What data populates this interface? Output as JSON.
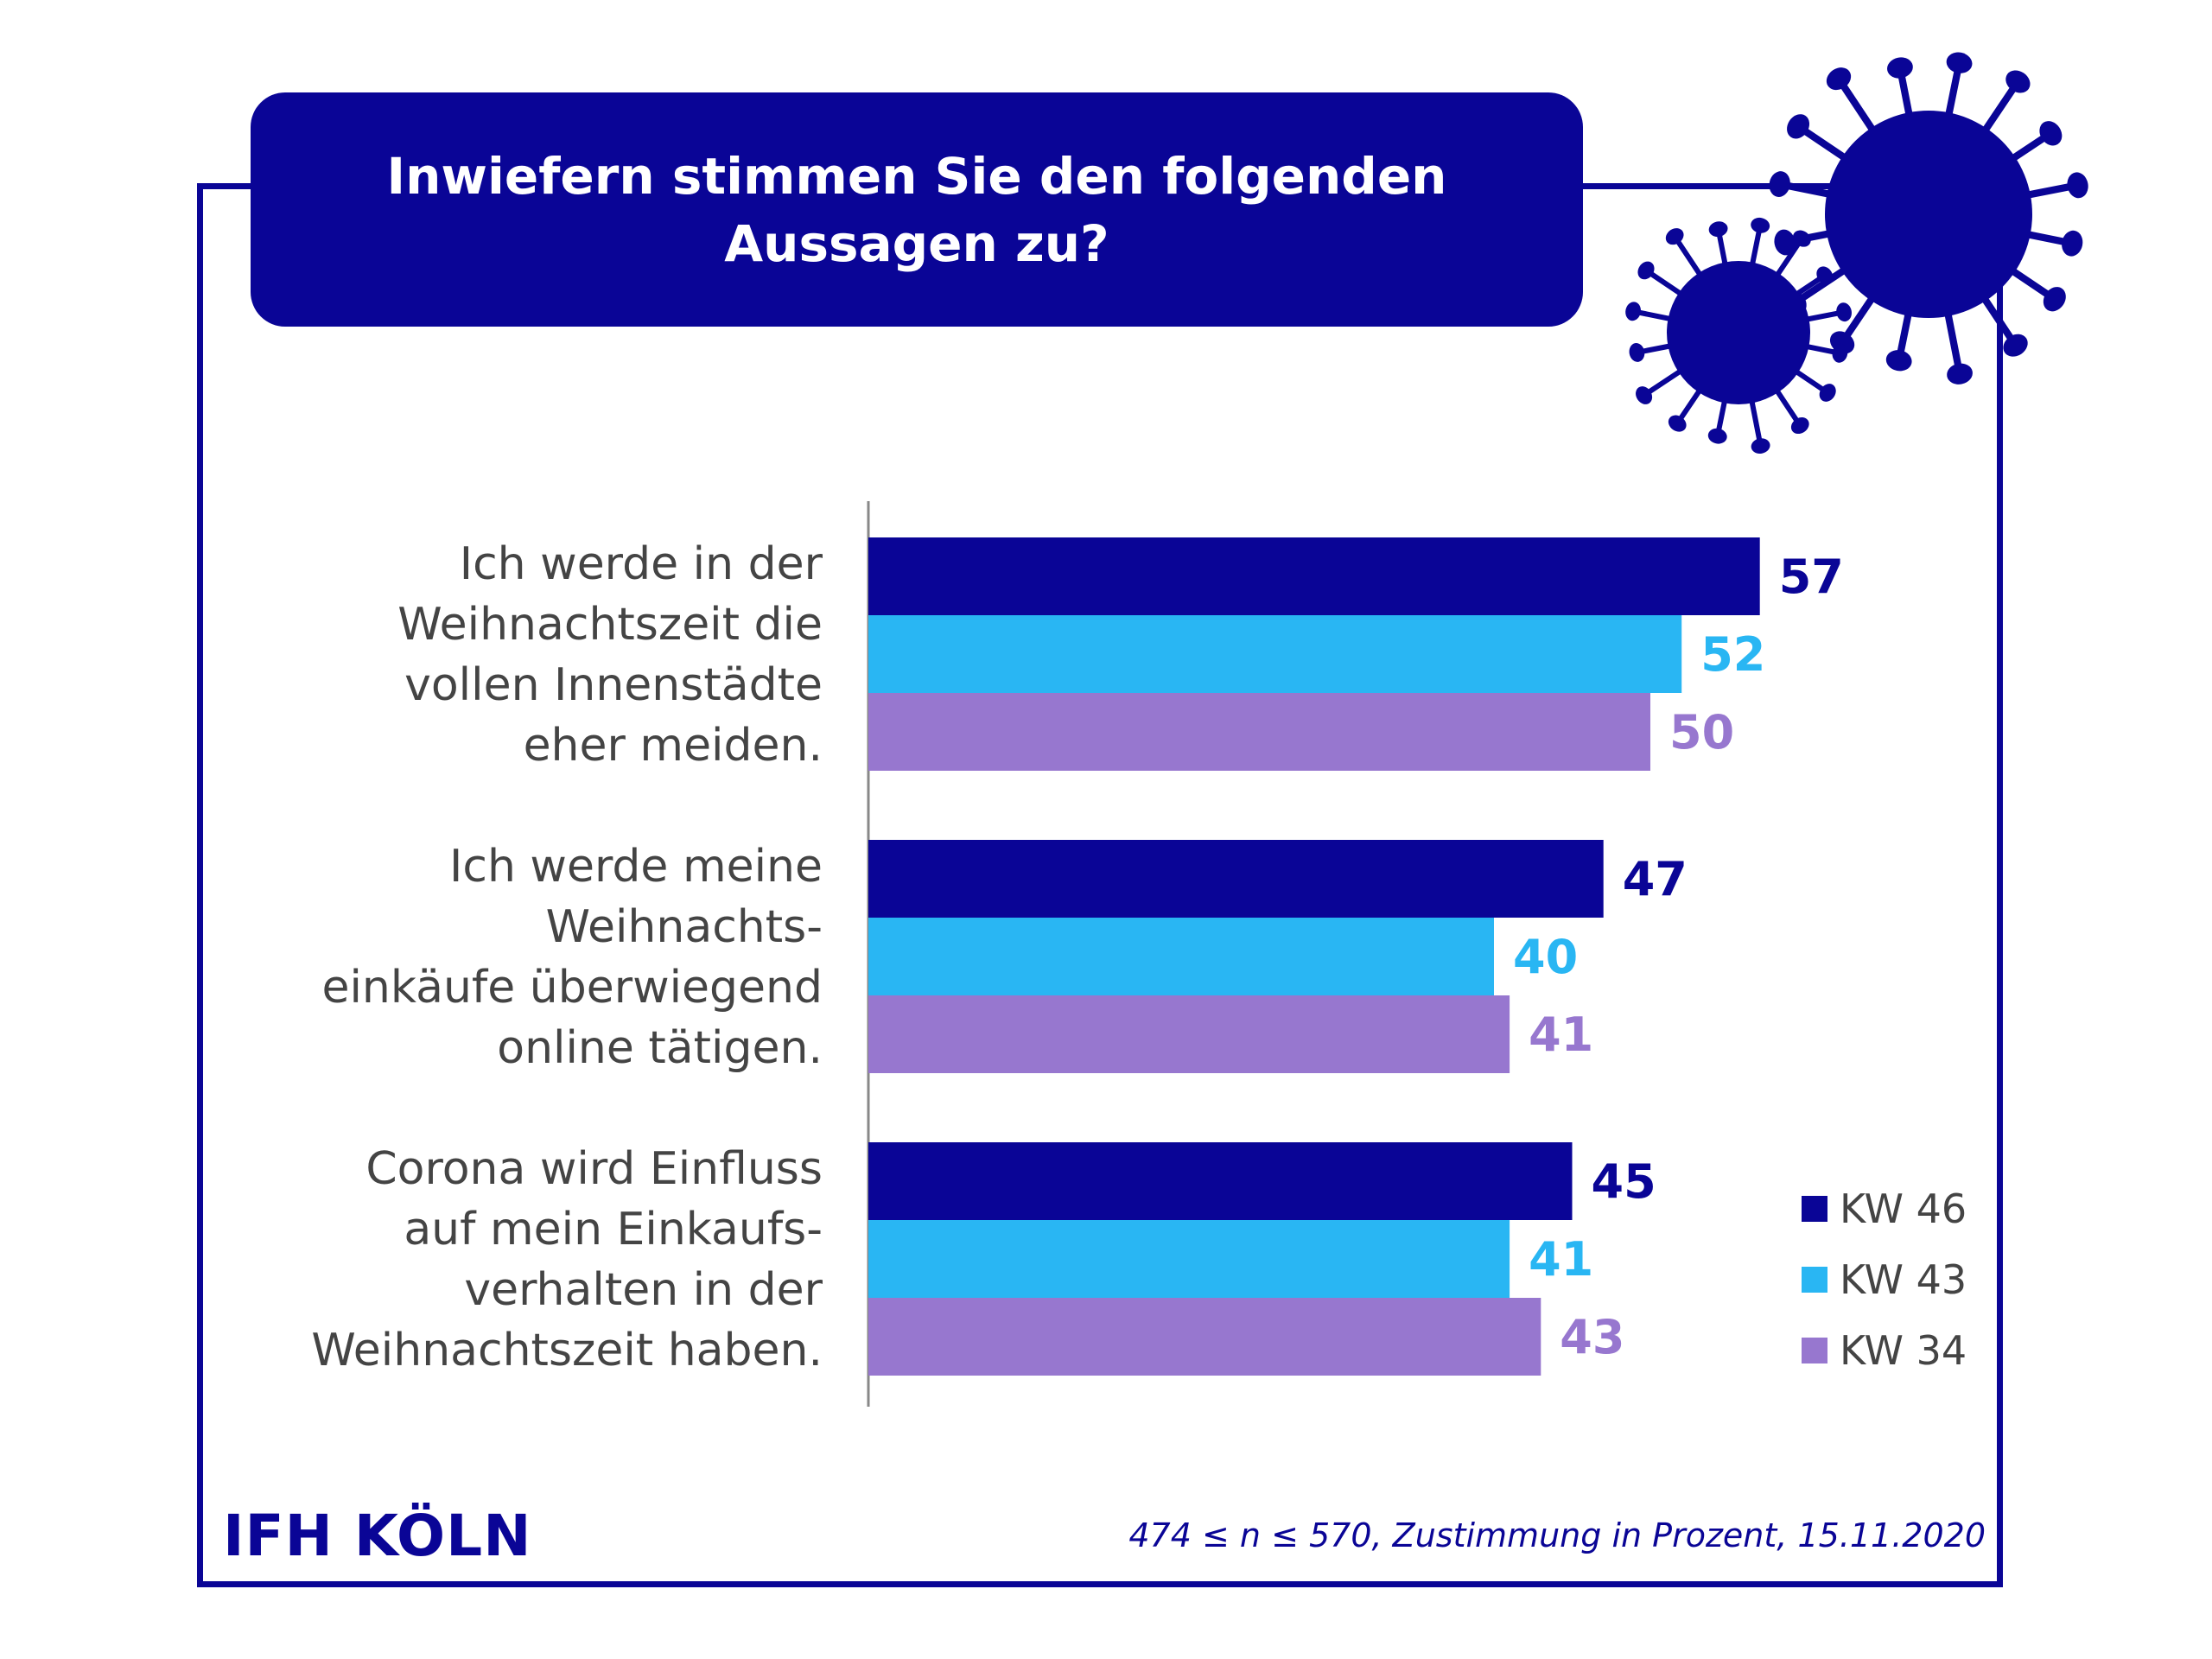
{
  "colors": {
    "navy": "#0a0596",
    "cyan": "#29b6f3",
    "purple": "#9777cf",
    "axis": "#888888",
    "label_text": "#444444"
  },
  "title": "Inwiefern stimmen Sie den folgenden Aussagen zu?",
  "logo": "IFH KÖLN",
  "footnote": "474 ≤ n ≤ 570, Zustimmung in Prozent, 15.11.2020",
  "icons": [
    "virus-icon-large",
    "virus-icon-small"
  ],
  "chart_data": {
    "type": "bar",
    "orientation": "horizontal",
    "categories": [
      [
        "Ich werde in der",
        "Weihnachtszeit die",
        "vollen Innenstädte",
        "eher meiden."
      ],
      [
        "Ich werde meine",
        "Weihnachts-",
        "einkäufe überwiegend",
        "online tätigen."
      ],
      [
        "Corona wird Einfluss",
        "auf mein Einkaufs-",
        "verhalten in der",
        "Weihnachtszeit haben."
      ]
    ],
    "series": [
      {
        "name": "KW 46",
        "color": "#0a0596",
        "values": [
          57,
          47,
          45
        ]
      },
      {
        "name": "KW 43",
        "color": "#29b6f3",
        "values": [
          52,
          40,
          41
        ]
      },
      {
        "name": "KW 34",
        "color": "#9777cf",
        "values": [
          50,
          41,
          43
        ]
      }
    ],
    "xlim": [
      0,
      100
    ],
    "grid": false,
    "legend_position": "bottom-right",
    "data_labels": true
  }
}
